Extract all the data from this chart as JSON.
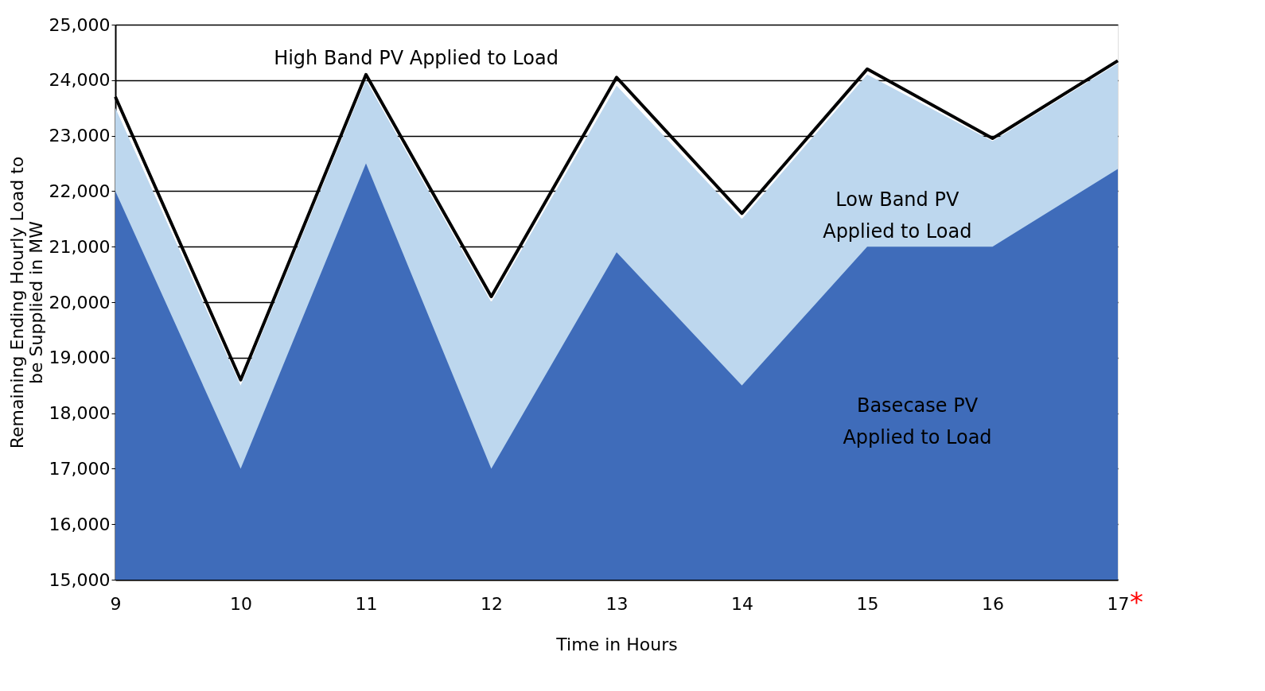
{
  "chart_data": {
    "type": "area",
    "xlabel": "Time in Hours",
    "ylabel": "Remaining Ending Hourly Load to be Supplied in MW",
    "categories": [
      "9",
      "10",
      "11",
      "12",
      "13",
      "14",
      "15",
      "16",
      "17"
    ],
    "series": [
      {
        "name": "Low Band PV Applied to Load",
        "color": "#bdd7ee",
        "values": [
          23500,
          18500,
          24000,
          20000,
          23900,
          21500,
          24100,
          22900,
          24300
        ]
      },
      {
        "name": "Basecase PV Applied to Load",
        "color": "#3f6cba",
        "values": [
          22000,
          17000,
          22500,
          17000,
          20900,
          18500,
          21000,
          21000,
          22400
        ]
      },
      {
        "name": "High Band PV Applied to Load",
        "type": "line",
        "color": "#000000",
        "values": [
          23700,
          18600,
          24100,
          20100,
          24050,
          21600,
          24200,
          22950,
          24350
        ]
      }
    ],
    "ylim": [
      15000,
      25000
    ],
    "yticks": [
      {
        "value": 15000,
        "label": "15,000"
      },
      {
        "value": 16000,
        "label": "16,000"
      },
      {
        "value": 17000,
        "label": "17,000"
      },
      {
        "value": 18000,
        "label": "18,000"
      },
      {
        "value": 19000,
        "label": "19,000"
      },
      {
        "value": 20000,
        "label": "20,000"
      },
      {
        "value": 21000,
        "label": "21,000"
      },
      {
        "value": 22000,
        "label": "22,000"
      },
      {
        "value": 23000,
        "label": "23,000"
      },
      {
        "value": 24000,
        "label": "24,000"
      },
      {
        "value": 25000,
        "label": "25,000"
      }
    ],
    "grid": "y",
    "legend": false,
    "annotations": [
      "*"
    ]
  }
}
